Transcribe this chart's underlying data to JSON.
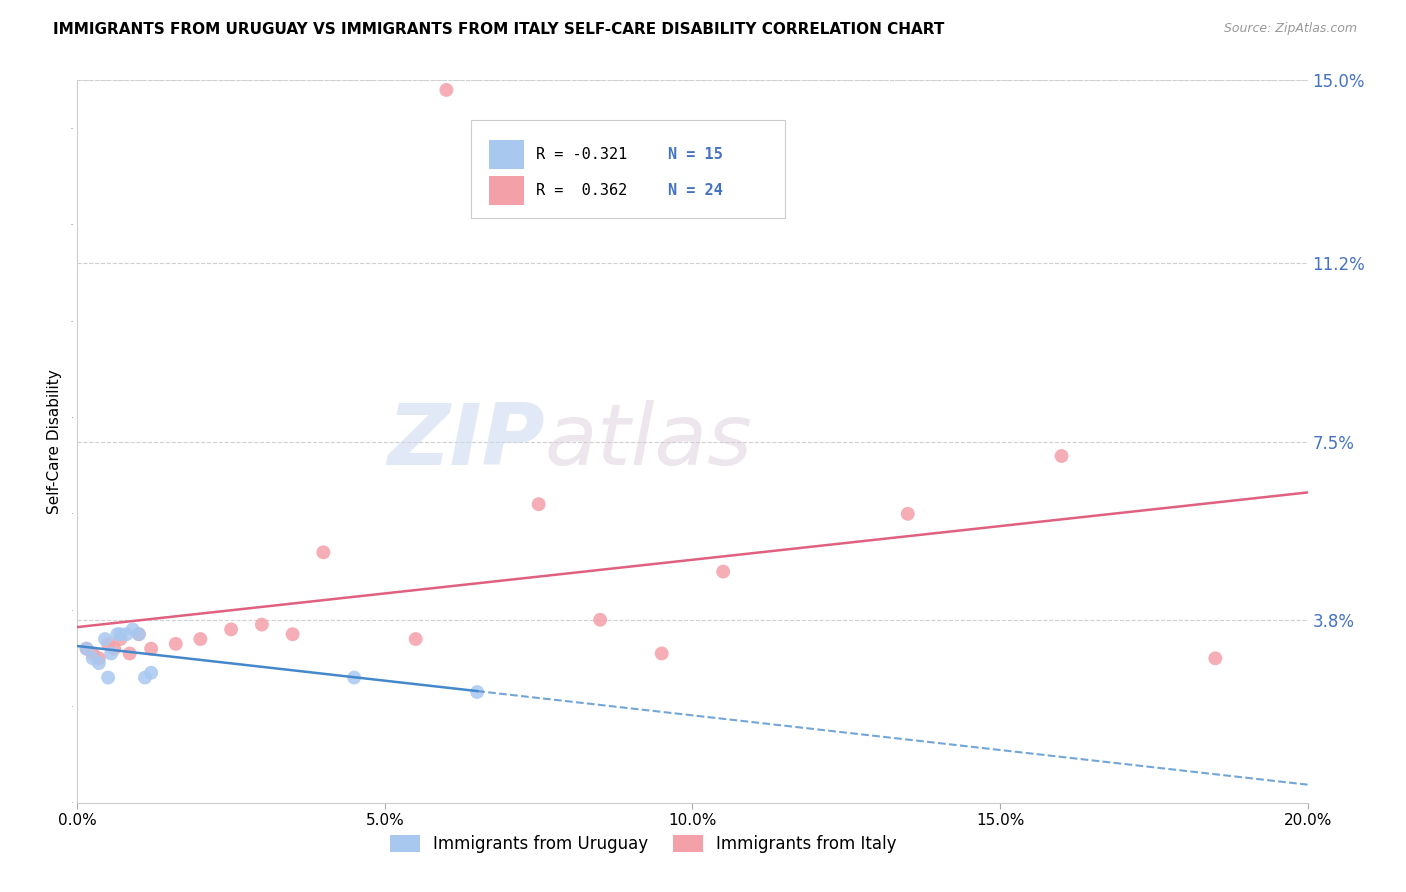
{
  "title": "IMMIGRANTS FROM URUGUAY VS IMMIGRANTS FROM ITALY SELF-CARE DISABILITY CORRELATION CHART",
  "source": "Source: ZipAtlas.com",
  "ylabel": "Self-Care Disability",
  "xlim": [
    0.0,
    20.0
  ],
  "ylim": [
    0.0,
    15.0
  ],
  "xlabel_vals": [
    0.0,
    5.0,
    10.0,
    15.0,
    20.0
  ],
  "ylabel_vals": [
    0.0,
    3.8,
    7.5,
    11.2,
    15.0
  ],
  "ylabel_labels": [
    "",
    "3.8%",
    "7.5%",
    "11.2%",
    "15.0%"
  ],
  "uruguay_color": "#a8c8f0",
  "italy_color": "#f4a0a8",
  "uruguay_line_color": "#4488cc",
  "italy_line_color": "#e06080",
  "uruguay_x": [
    0.15,
    0.25,
    0.35,
    0.45,
    0.5,
    0.55,
    0.65,
    0.7,
    0.8,
    0.9,
    1.0,
    1.1,
    1.2,
    4.5,
    6.5
  ],
  "uruguay_y": [
    3.2,
    3.0,
    2.9,
    3.4,
    2.6,
    3.1,
    3.5,
    3.5,
    3.5,
    3.6,
    3.5,
    2.6,
    2.7,
    2.6,
    2.3
  ],
  "italy_x": [
    0.15,
    0.25,
    0.35,
    0.5,
    0.6,
    0.7,
    0.85,
    1.0,
    1.2,
    1.6,
    2.0,
    2.5,
    3.0,
    3.5,
    4.0,
    5.5,
    6.0,
    7.5,
    8.5,
    9.5,
    10.5,
    13.5,
    16.0,
    18.5
  ],
  "italy_y": [
    3.2,
    3.1,
    3.0,
    3.3,
    3.2,
    3.4,
    3.1,
    3.5,
    3.2,
    3.3,
    3.4,
    3.6,
    3.7,
    3.5,
    5.2,
    3.4,
    14.8,
    6.2,
    3.8,
    3.1,
    4.8,
    6.0,
    7.2,
    3.0
  ],
  "watermark_zip": "ZIP",
  "watermark_atlas": "atlas",
  "legend_R_uruguay": "R = -0.321",
  "legend_N_uruguay": "N = 15",
  "legend_R_italy": "R =  0.362",
  "legend_N_italy": "N = 24",
  "legend_label_uruguay": "Immigrants from Uruguay",
  "legend_label_italy": "Immigrants from Italy"
}
